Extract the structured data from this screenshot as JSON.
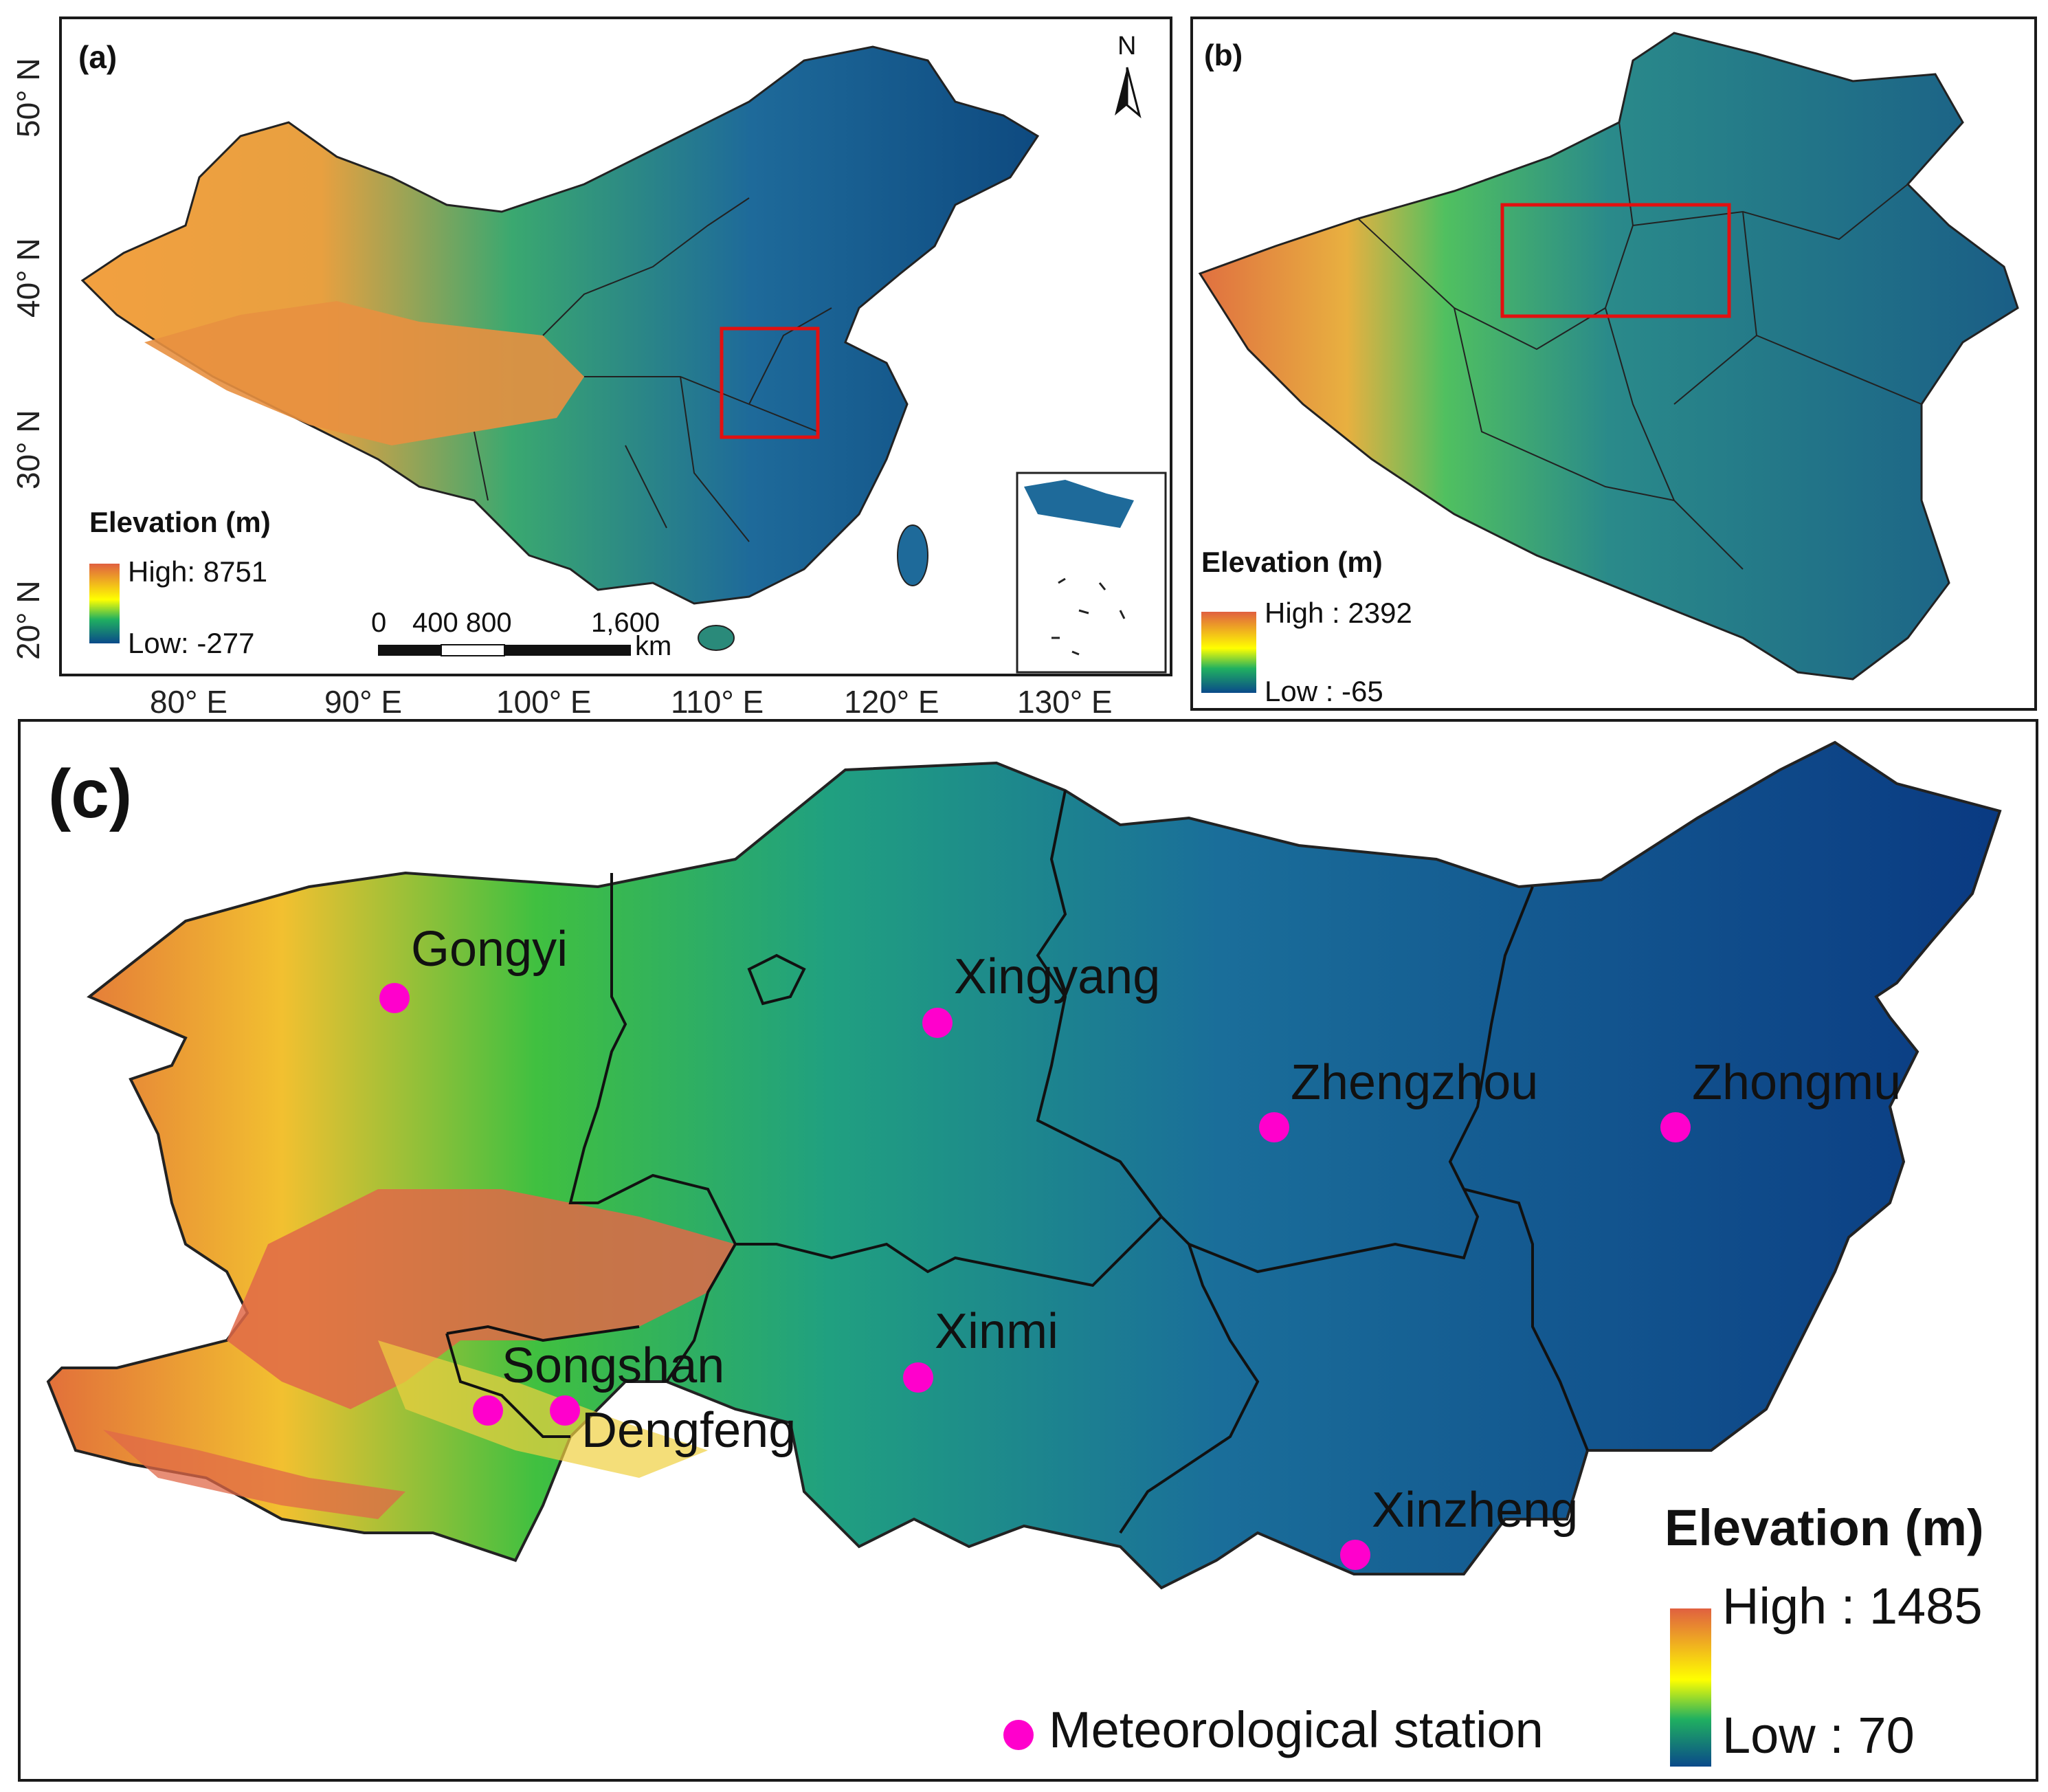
{
  "panel_a": {
    "label": "(a)",
    "north": "N",
    "lat_ticks": [
      "50° N",
      "40° N",
      "30° N",
      "20° N"
    ],
    "lon_ticks": [
      "80° E",
      "90° E",
      "100° E",
      "110° E",
      "120° E",
      "130° E"
    ],
    "legend_title": "Elevation (m)",
    "legend_high": "High: 8751",
    "legend_low": "Low: -277",
    "scale_labels": [
      "0",
      "400 800",
      "1,600"
    ],
    "scale_unit": "km",
    "colors": {
      "high": "#e06040",
      "mid": "#ffff00",
      "low": "#0a4a8a"
    }
  },
  "panel_b": {
    "label": "(b)",
    "legend_title": "Elevation (m)",
    "legend_high": "High : 2392",
    "legend_low": "Low : -65"
  },
  "panel_c": {
    "label": "(c)",
    "legend_title": "Elevation (m)",
    "legend_high": "High : 1485",
    "legend_low": "Low : 70",
    "station_legend": "Meteorological station",
    "station_color": "#ff00cc",
    "stations": [
      {
        "name": "Gongyi"
      },
      {
        "name": "Xingyang"
      },
      {
        "name": "Zhengzhou"
      },
      {
        "name": "Zhongmu"
      },
      {
        "name": "Xinmi"
      },
      {
        "name": "Songshan"
      },
      {
        "name": "Dengfeng"
      },
      {
        "name": "Xinzheng"
      }
    ]
  }
}
